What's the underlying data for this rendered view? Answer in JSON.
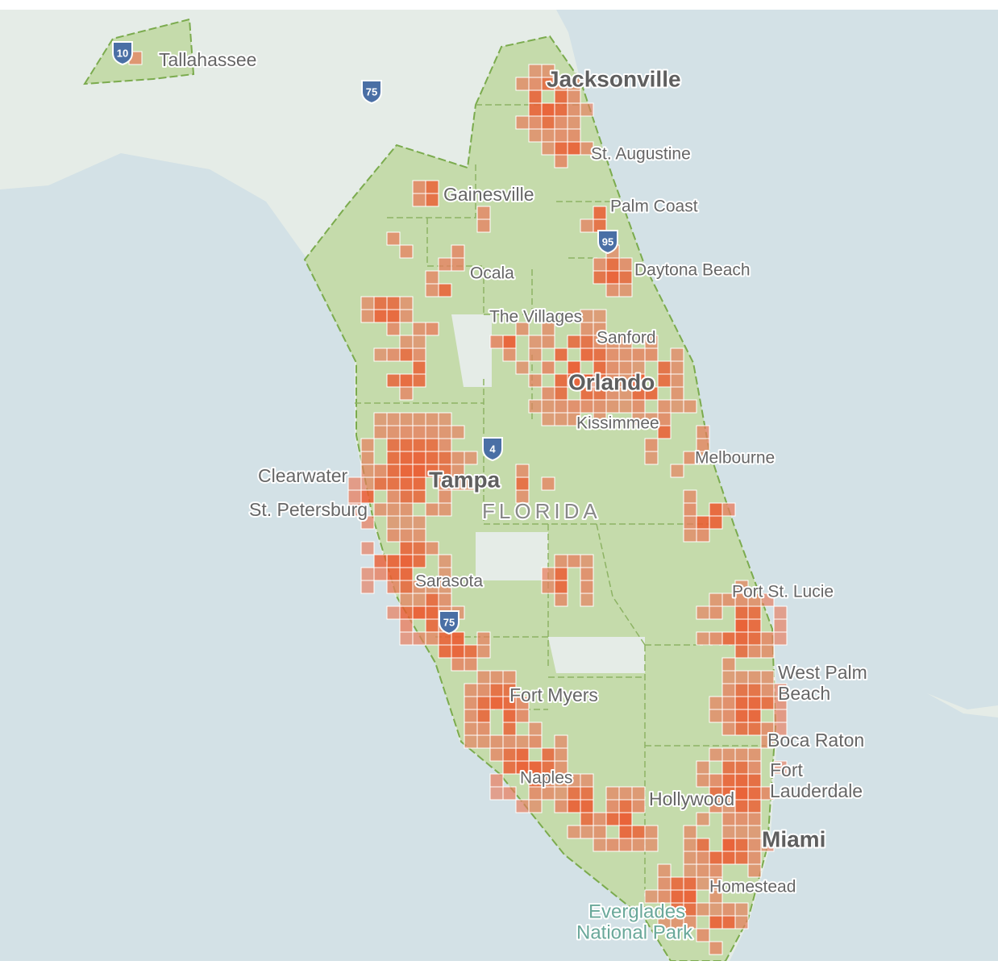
{
  "map": {
    "places": [
      {
        "lines": [
          "Tallahassee"
        ]
      },
      {
        "lines": [
          "Jacksonville"
        ]
      },
      {
        "lines": [
          "St. Augustine"
        ]
      },
      {
        "lines": [
          "Gainesville"
        ]
      },
      {
        "lines": [
          "Palm Coast"
        ]
      },
      {
        "lines": [
          "Ocala"
        ]
      },
      {
        "lines": [
          "Daytona Beach"
        ]
      },
      {
        "lines": [
          "The Villages"
        ]
      },
      {
        "lines": [
          "Sanford"
        ]
      },
      {
        "lines": [
          "Orlando"
        ]
      },
      {
        "lines": [
          "Kissimmee"
        ]
      },
      {
        "lines": [
          "Melbourne"
        ]
      },
      {
        "lines": [
          "Clearwater"
        ]
      },
      {
        "lines": [
          "Tampa"
        ]
      },
      {
        "lines": [
          "St. Petersburg"
        ]
      },
      {
        "lines": [
          "Sarasota"
        ]
      },
      {
        "lines": [
          "Port St. Lucie"
        ]
      },
      {
        "lines": [
          "West Palm",
          "Beach"
        ]
      },
      {
        "lines": [
          "Fort Myers"
        ]
      },
      {
        "lines": [
          "Boca Raton"
        ]
      },
      {
        "lines": [
          "Fort",
          "Lauderdale"
        ]
      },
      {
        "lines": [
          "Naples"
        ]
      },
      {
        "lines": [
          "Hollywood"
        ]
      },
      {
        "lines": [
          "Miami"
        ]
      },
      {
        "lines": [
          "Homestead"
        ]
      },
      {
        "lines": [
          "Everglades",
          "National Park"
        ]
      }
    ],
    "state": "FLORIDA",
    "shields": [
      "10",
      "75",
      "95",
      "4",
      "75"
    ]
  }
}
